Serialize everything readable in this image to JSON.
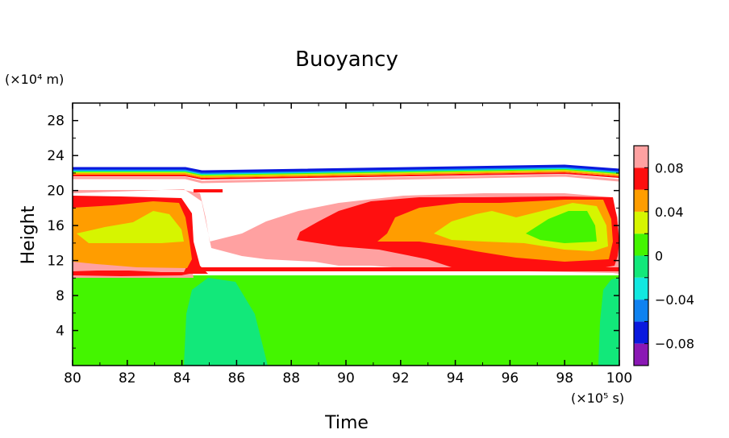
{
  "chart_data": {
    "type": "heatmap",
    "title": "Buoyancy",
    "xlabel": "Time",
    "ylabel": "Height",
    "x_unit": "(×10⁵ s)",
    "y_unit": "(×10⁴ m)",
    "xlim": [
      80,
      100
    ],
    "ylim": [
      0,
      30
    ],
    "x_ticks": [
      "80",
      "82",
      "84",
      "86",
      "88",
      "90",
      "92",
      "94",
      "96",
      "98",
      "100"
    ],
    "y_ticks": [
      "4",
      "8",
      "12",
      "16",
      "20",
      "24",
      "28"
    ],
    "colorbar": {
      "levels": [
        {
          "color": "#8a18b4"
        },
        {
          "color": "#0a19de"
        },
        {
          "color": "#0f82f0"
        },
        {
          "color": "#12e8e0"
        },
        {
          "color": "#12e87a"
        },
        {
          "color": "#44f500"
        },
        {
          "color": "#d6f500"
        },
        {
          "color": "#ff9d00"
        },
        {
          "color": "#ff0f0f"
        },
        {
          "color": "#ffa1a1"
        }
      ],
      "tick_labels": [
        "−0.08",
        "−0.04",
        "0",
        "0.04",
        "0.08"
      ]
    },
    "regions": [
      {
        "name": "lower-troposphere",
        "value": 0.02,
        "color": "#44f500"
      },
      {
        "name": "near-zero-pocket-84-87",
        "value": 0.0,
        "color": "#12e87a"
      },
      {
        "name": "near-zero-pocket-99-100",
        "value": 0.0,
        "color": "#12e87a"
      },
      {
        "name": "upper-band",
        "value": 0.09,
        "color": "#ffa1a1"
      },
      {
        "name": "upper-band-core",
        "value": 0.07,
        "color": "#ff0f0f"
      },
      {
        "name": "upper-band-mid",
        "value": 0.05,
        "color": "#ff9d00"
      },
      {
        "name": "upper-band-inner",
        "value": 0.03,
        "color": "#d6f500"
      },
      {
        "name": "tropopause-gradient",
        "value": -0.06,
        "color": "#0a19de"
      }
    ]
  }
}
